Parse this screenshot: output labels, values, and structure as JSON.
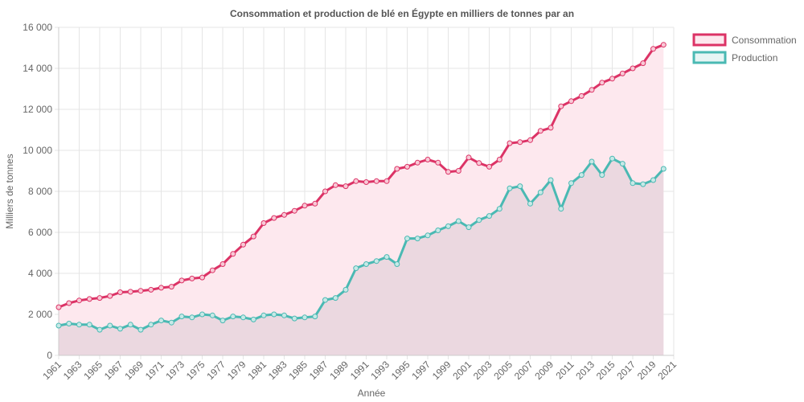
{
  "chart_data": {
    "type": "line",
    "title": "Consommation et production de blé en Égypte en milliers de tonnes par an",
    "xlabel": "Année",
    "ylabel": "Milliers de tonnes",
    "x": [
      1961,
      1962,
      1963,
      1964,
      1965,
      1966,
      1967,
      1968,
      1969,
      1970,
      1971,
      1972,
      1973,
      1974,
      1975,
      1976,
      1977,
      1978,
      1979,
      1980,
      1981,
      1982,
      1983,
      1984,
      1985,
      1986,
      1987,
      1988,
      1989,
      1990,
      1991,
      1992,
      1993,
      1994,
      1995,
      1996,
      1997,
      1998,
      1999,
      2000,
      2001,
      2002,
      2003,
      2004,
      2005,
      2006,
      2007,
      2008,
      2009,
      2010,
      2011,
      2012,
      2013,
      2014,
      2015,
      2016,
      2017,
      2018,
      2019,
      2020
    ],
    "xlim": [
      1961,
      2021
    ],
    "x_ticks": [
      "1961",
      "1963",
      "1965",
      "1967",
      "1969",
      "1971",
      "1973",
      "1975",
      "1977",
      "1979",
      "1981",
      "1983",
      "1985",
      "1987",
      "1989",
      "1991",
      "1993",
      "1995",
      "1997",
      "1999",
      "2001",
      "2003",
      "2005",
      "2007",
      "2009",
      "2011",
      "2013",
      "2015",
      "2017",
      "2019",
      "2021"
    ],
    "ylim": [
      0,
      16000
    ],
    "y_ticks": [
      "0",
      "2 000",
      "4 000",
      "6 000",
      "8 000",
      "10 000",
      "12 000",
      "14 000",
      "16 000"
    ],
    "grid": true,
    "legend_position": "top-right",
    "series": [
      {
        "name": "Consommation",
        "color": "#dc3366",
        "fill": "#fde8ee",
        "values": [
          2350,
          2550,
          2680,
          2750,
          2800,
          2900,
          3080,
          3100,
          3150,
          3200,
          3300,
          3350,
          3650,
          3750,
          3800,
          4150,
          4450,
          4950,
          5400,
          5800,
          6450,
          6700,
          6850,
          7050,
          7300,
          7400,
          8000,
          8300,
          8250,
          8500,
          8450,
          8500,
          8500,
          9100,
          9200,
          9400,
          9550,
          9400,
          8950,
          9000,
          9650,
          9380,
          9200,
          9550,
          10350,
          10400,
          10500,
          10950,
          11100,
          12150,
          12400,
          12650,
          12950,
          13300,
          13500,
          13750,
          14000,
          14250,
          14950,
          15150
        ]
      },
      {
        "name": "Production",
        "color": "#4ab9b3",
        "fill": "rgba(200,185,195,0.32)",
        "values": [
          1450,
          1550,
          1500,
          1500,
          1250,
          1450,
          1300,
          1500,
          1250,
          1500,
          1700,
          1600,
          1900,
          1850,
          2000,
          1950,
          1700,
          1900,
          1850,
          1750,
          1950,
          2000,
          1950,
          1800,
          1850,
          1900,
          2700,
          2800,
          3200,
          4250,
          4450,
          4600,
          4800,
          4450,
          5700,
          5700,
          5850,
          6100,
          6300,
          6550,
          6250,
          6600,
          6800,
          7150,
          8150,
          8250,
          7400,
          7950,
          8550,
          7150,
          8400,
          8800,
          9450,
          8800,
          9600,
          9350,
          8400,
          8350,
          8550,
          9100
        ]
      }
    ]
  }
}
